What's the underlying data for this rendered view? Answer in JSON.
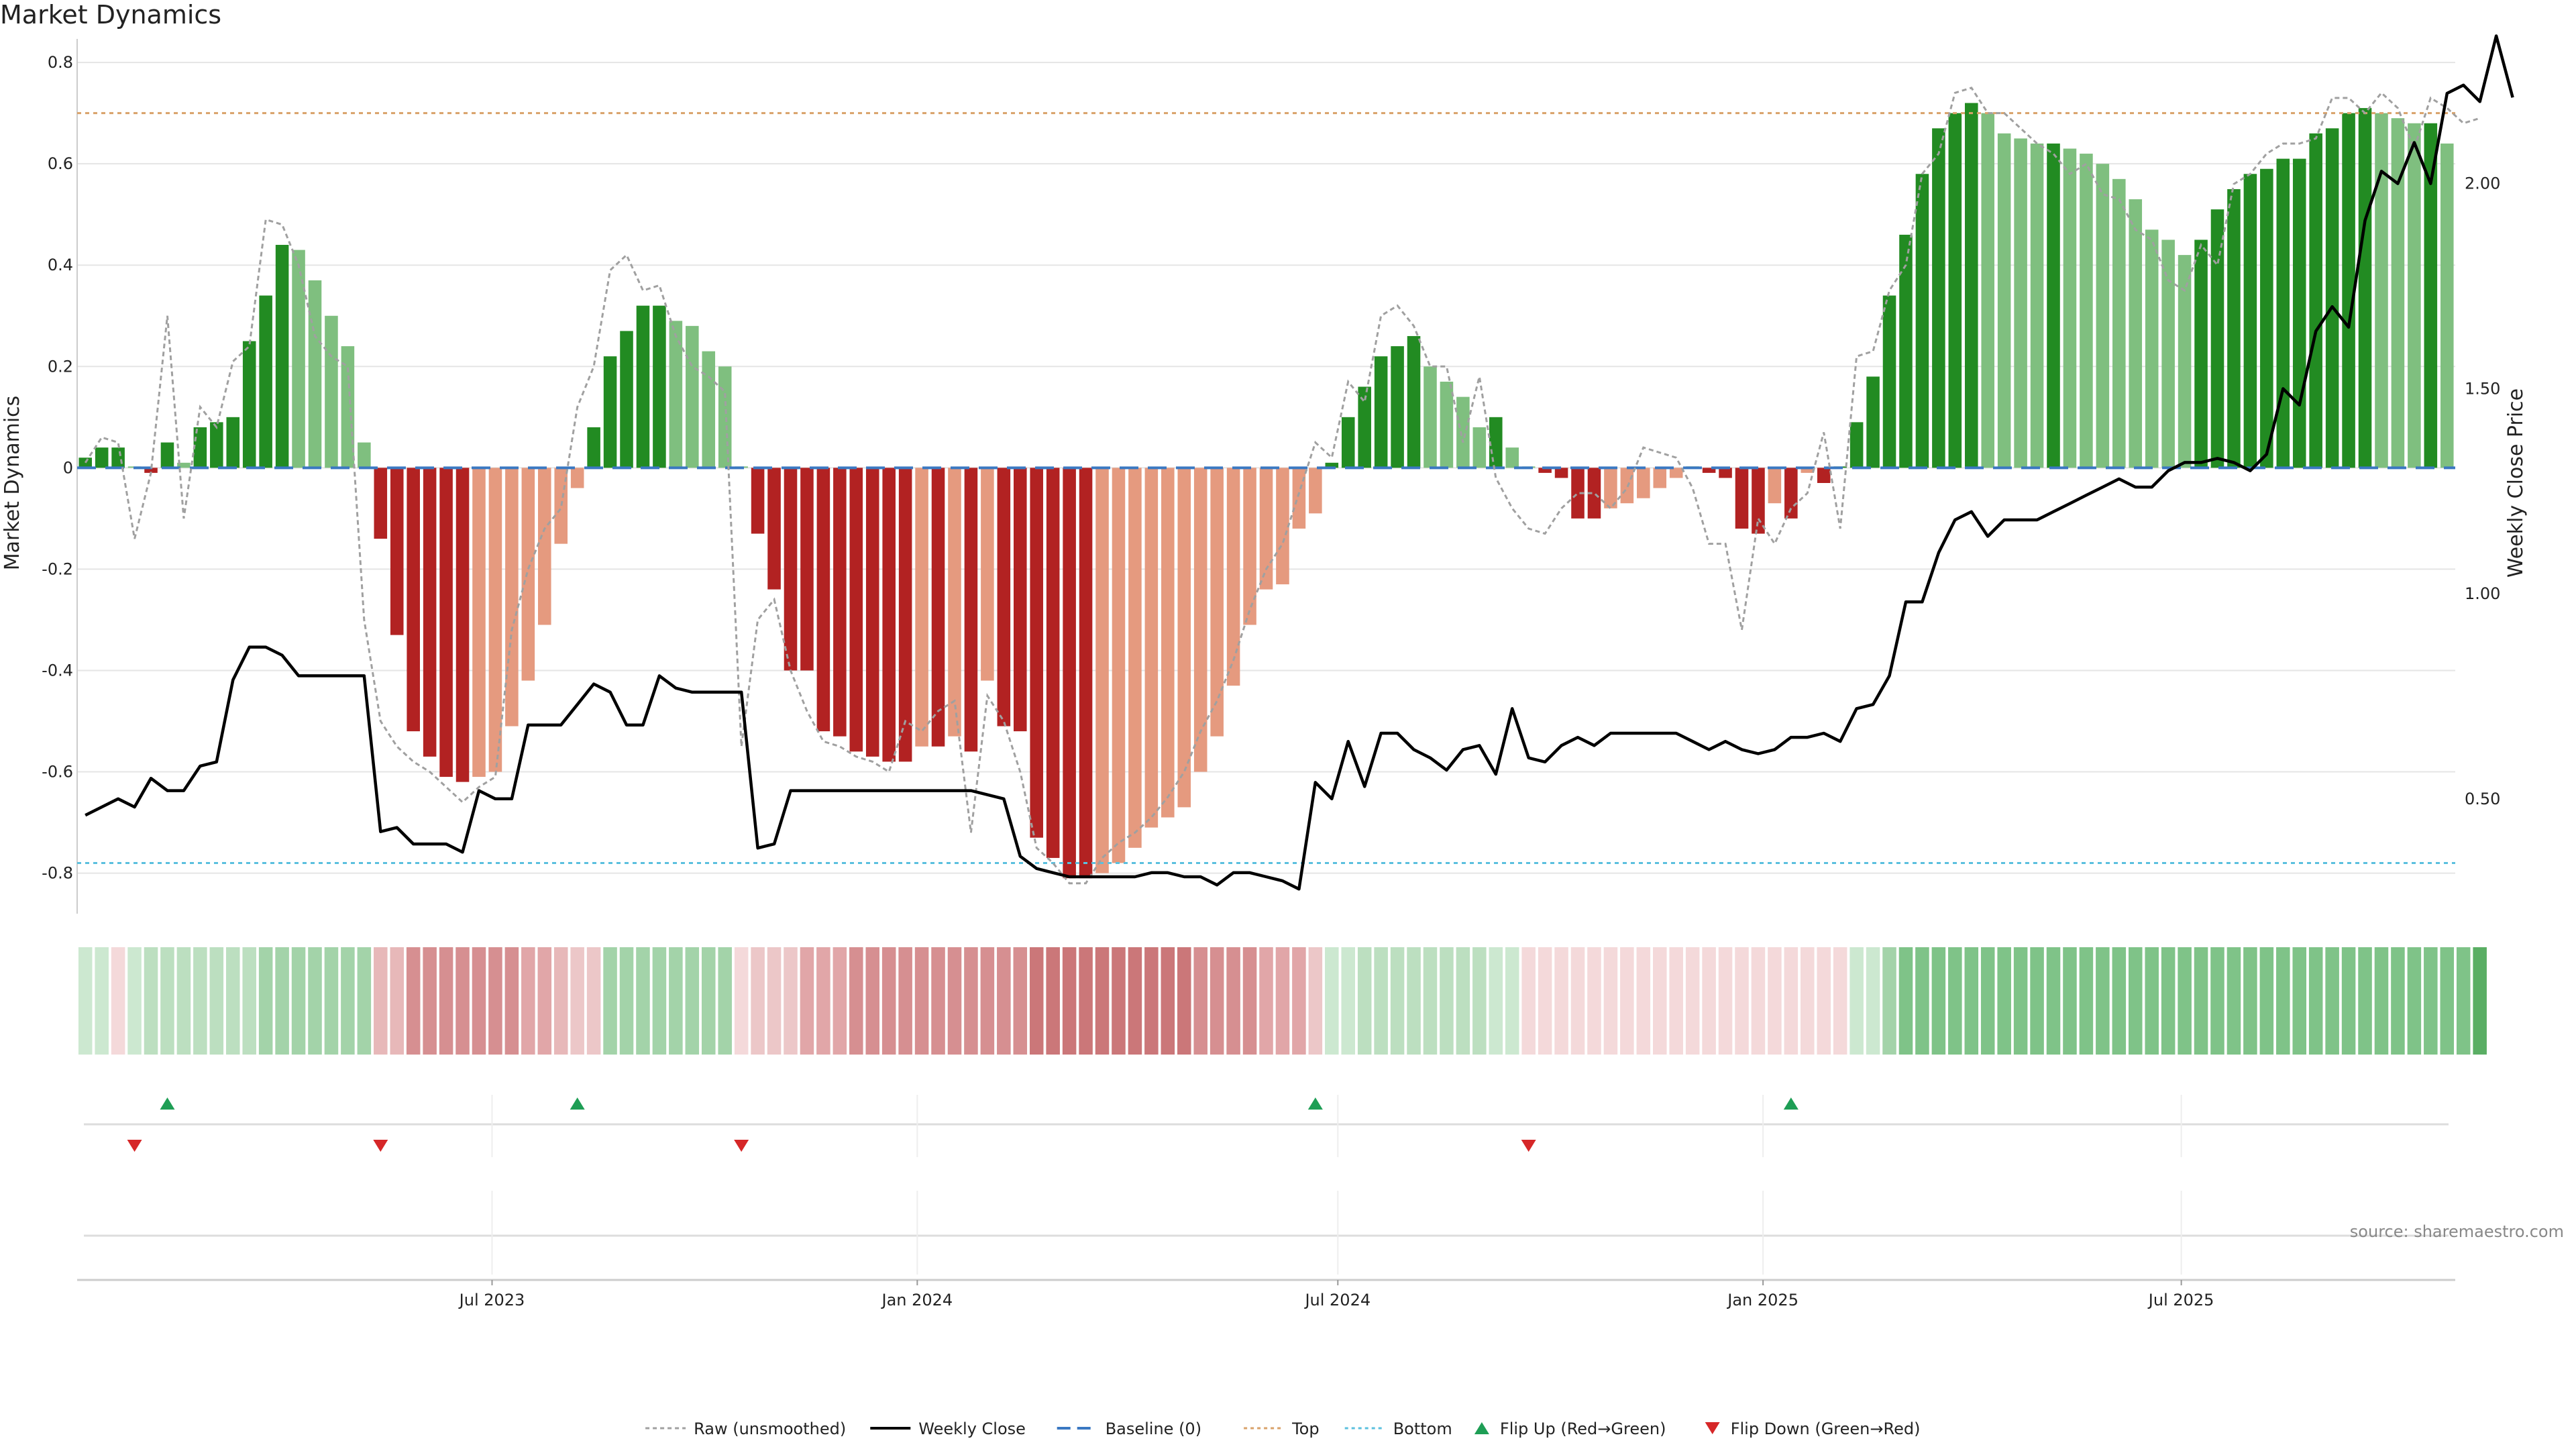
{
  "title": "Market Dynamics",
  "source_note": "source: sharemaestro.com",
  "chart_data": {
    "type": "bar",
    "title": "Market Dynamics",
    "ylabel_left": "Market Dynamics",
    "ylabel_right": "Weekly Close Price",
    "ylim_left": [
      -0.88,
      0.82
    ],
    "ylim_right": [
      0.22,
      2.32
    ],
    "yticks_left": [
      0.8,
      0.6,
      0.4,
      0.2,
      0,
      -0.2,
      -0.4,
      -0.6,
      -0.8
    ],
    "yticks_left_labels": [
      "0.8",
      "0.6",
      "0.4",
      "0.2",
      "0",
      "-0.2",
      "-0.4",
      "-0.6",
      "-0.8"
    ],
    "yticks_right": [
      2.0,
      1.5,
      1.0,
      0.5
    ],
    "yticks_right_labels": [
      "2.00",
      "1.50",
      "1.00",
      "0.50"
    ],
    "x_start": "2023-01-06",
    "x_end": "2025-10-24",
    "x_tick_labels": [
      "Jul 2023",
      "Jan 2024",
      "Jul 2024",
      "Jan 2025",
      "Jul 2025"
    ],
    "x_tick_dates": [
      "2023-07-01",
      "2024-01-01",
      "2024-07-01",
      "2025-01-01",
      "2025-07-01"
    ],
    "top_line": 0.7,
    "bottom_line": -0.78,
    "baseline": 0,
    "grid": true,
    "legend_position": "bottom-center",
    "market_dynamics": [
      0.02,
      0.04,
      0.04,
      0.0,
      -0.01,
      0.05,
      0.01,
      0.08,
      0.09,
      0.1,
      0.25,
      0.34,
      0.44,
      0.43,
      0.37,
      0.3,
      0.24,
      0.05,
      -0.14,
      -0.33,
      -0.52,
      -0.57,
      -0.61,
      -0.62,
      -0.61,
      -0.6,
      -0.51,
      -0.42,
      -0.31,
      -0.15,
      -0.04,
      0.08,
      0.22,
      0.27,
      0.32,
      0.32,
      0.29,
      0.28,
      0.23,
      0.2,
      0.0,
      -0.13,
      -0.24,
      -0.4,
      -0.4,
      -0.52,
      -0.53,
      -0.56,
      -0.57,
      -0.58,
      -0.58,
      -0.55,
      -0.55,
      -0.53,
      -0.56,
      -0.42,
      -0.51,
      -0.52,
      -0.73,
      -0.77,
      -0.81,
      -0.81,
      -0.8,
      -0.78,
      -0.75,
      -0.71,
      -0.69,
      -0.67,
      -0.6,
      -0.53,
      -0.43,
      -0.31,
      -0.24,
      -0.23,
      -0.12,
      -0.09,
      0.01,
      0.1,
      0.16,
      0.22,
      0.24,
      0.26,
      0.2,
      0.17,
      0.14,
      0.08,
      0.1,
      0.04,
      0.0,
      -0.01,
      -0.02,
      -0.1,
      -0.1,
      -0.08,
      -0.07,
      -0.06,
      -0.04,
      -0.02,
      0.0,
      -0.01,
      -0.02,
      -0.12,
      -0.13,
      -0.07,
      -0.1,
      -0.01,
      -0.03,
      0.0,
      0.09,
      0.18,
      0.34,
      0.46,
      0.58,
      0.67,
      0.7,
      0.72,
      0.7,
      0.66,
      0.65,
      0.64,
      0.64,
      0.63,
      0.62,
      0.6,
      0.57,
      0.53,
      0.47,
      0.45,
      0.42,
      0.45,
      0.51,
      0.55,
      0.58,
      0.59,
      0.61,
      0.61,
      0.66,
      0.67,
      0.7,
      0.71,
      0.7,
      0.69,
      0.68,
      0.68,
      0.64
    ],
    "raw_unsmoothed": [
      0.01,
      0.06,
      0.05,
      -0.14,
      -0.01,
      0.3,
      -0.1,
      0.12,
      0.08,
      0.21,
      0.24,
      0.49,
      0.48,
      0.4,
      0.26,
      0.22,
      0.2,
      -0.3,
      -0.5,
      -0.55,
      -0.58,
      -0.6,
      -0.63,
      -0.66,
      -0.63,
      -0.61,
      -0.32,
      -0.2,
      -0.12,
      -0.08,
      0.12,
      0.2,
      0.39,
      0.42,
      0.35,
      0.36,
      0.26,
      0.2,
      0.18,
      0.15,
      -0.55,
      -0.3,
      -0.26,
      -0.4,
      -0.48,
      -0.54,
      -0.55,
      -0.57,
      -0.58,
      -0.6,
      -0.5,
      -0.52,
      -0.48,
      -0.46,
      -0.72,
      -0.45,
      -0.5,
      -0.6,
      -0.75,
      -0.78,
      -0.82,
      -0.82,
      -0.77,
      -0.74,
      -0.72,
      -0.69,
      -0.65,
      -0.6,
      -0.52,
      -0.46,
      -0.38,
      -0.28,
      -0.2,
      -0.15,
      -0.05,
      0.05,
      0.02,
      0.17,
      0.13,
      0.3,
      0.32,
      0.28,
      0.2,
      0.2,
      0.05,
      0.18,
      -0.02,
      -0.08,
      -0.12,
      -0.13,
      -0.08,
      -0.05,
      -0.05,
      -0.08,
      -0.04,
      0.04,
      0.03,
      0.02,
      -0.04,
      -0.15,
      -0.15,
      -0.32,
      -0.1,
      -0.15,
      -0.08,
      -0.05,
      0.07,
      -0.12,
      0.22,
      0.23,
      0.35,
      0.4,
      0.58,
      0.62,
      0.74,
      0.75,
      0.7,
      0.7,
      0.67,
      0.64,
      0.62,
      0.58,
      0.6,
      0.54,
      0.53,
      0.47,
      0.45,
      0.37,
      0.35,
      0.44,
      0.4,
      0.56,
      0.58,
      0.62,
      0.64,
      0.64,
      0.65,
      0.73,
      0.73,
      0.7,
      0.74,
      0.71,
      0.63,
      0.73,
      0.71,
      0.68,
      0.69
    ],
    "weekly_close": [
      0.46,
      0.48,
      0.5,
      0.48,
      0.55,
      0.52,
      0.52,
      0.58,
      0.59,
      0.79,
      0.87,
      0.87,
      0.85,
      0.8,
      0.8,
      0.8,
      0.8,
      0.8,
      0.42,
      0.43,
      0.39,
      0.39,
      0.39,
      0.37,
      0.52,
      0.5,
      0.5,
      0.68,
      0.68,
      0.68,
      0.73,
      0.78,
      0.76,
      0.68,
      0.68,
      0.8,
      0.77,
      0.76,
      0.76,
      0.76,
      0.76,
      0.38,
      0.39,
      0.52,
      0.52,
      0.52,
      0.52,
      0.52,
      0.52,
      0.52,
      0.52,
      0.52,
      0.52,
      0.52,
      0.52,
      0.51,
      0.5,
      0.36,
      0.33,
      0.32,
      0.31,
      0.31,
      0.31,
      0.31,
      0.31,
      0.32,
      0.32,
      0.31,
      0.31,
      0.29,
      0.32,
      0.32,
      0.31,
      0.3,
      0.28,
      0.54,
      0.5,
      0.64,
      0.53,
      0.66,
      0.66,
      0.62,
      0.6,
      0.57,
      0.62,
      0.63,
      0.56,
      0.72,
      0.6,
      0.59,
      0.63,
      0.65,
      0.63,
      0.66,
      0.66,
      0.66,
      0.66,
      0.66,
      0.64,
      0.62,
      0.64,
      0.62,
      0.61,
      0.62,
      0.65,
      0.65,
      0.66,
      0.64,
      0.72,
      0.73,
      0.8,
      0.98,
      0.98,
      1.1,
      1.18,
      1.2,
      1.14,
      1.18,
      1.18,
      1.18,
      1.2,
      1.22,
      1.24,
      1.26,
      1.28,
      1.26,
      1.26,
      1.3,
      1.32,
      1.32,
      1.33,
      1.32,
      1.3,
      1.34,
      1.5,
      1.46,
      1.64,
      1.7,
      1.65,
      1.91,
      2.03,
      2.0,
      2.1,
      2.0,
      2.22,
      2.24,
      2.2,
      2.36,
      2.21
    ],
    "regime_colors": [
      "#cce8d0",
      "#cce8d0",
      "#f4d9da",
      "#cce8d0",
      "#bcdfc0",
      "#bcdfc0",
      "#bcdfc0",
      "#bcdfc0",
      "#bcdfc0",
      "#bcdfc0",
      "#bcdfc0",
      "#a3d3a9",
      "#a3d3a9",
      "#a3d3a9",
      "#a3d3a9",
      "#a3d3a9",
      "#a3d3a9",
      "#a3d3a9",
      "#e7b8b9",
      "#e7b8b9",
      "#d68f91",
      "#d68f91",
      "#d68f91",
      "#d68f91",
      "#d68f91",
      "#d68f91",
      "#d68f91",
      "#e1a6a8",
      "#e1a6a8",
      "#e7b8b9",
      "#ecc7c8",
      "#ecc7c8",
      "#a3d3a9",
      "#a3d3a9",
      "#a3d3a9",
      "#a3d3a9",
      "#a3d3a9",
      "#a3d3a9",
      "#a3d3a9",
      "#a3d3a9",
      "#f4d9da",
      "#ecc7c8",
      "#ecc7c8",
      "#ecc7c8",
      "#e1a6a8",
      "#e1a6a8",
      "#e1a6a8",
      "#d68f91",
      "#d68f91",
      "#d68f91",
      "#d68f91",
      "#d68f91",
      "#d68f91",
      "#d68f91",
      "#d68f91",
      "#d68f91",
      "#d68f91",
      "#d68f91",
      "#cb7779",
      "#cb7779",
      "#cb7779",
      "#cb7779",
      "#cb7779",
      "#cb7779",
      "#cb7779",
      "#cb7779",
      "#cb7779",
      "#cb7779",
      "#d68f91",
      "#d68f91",
      "#d68f91",
      "#d68f91",
      "#e1a6a8",
      "#e1a6a8",
      "#e1a6a8",
      "#ecc7c8",
      "#cce8d0",
      "#cce8d0",
      "#bcdfc0",
      "#bcdfc0",
      "#bcdfc0",
      "#bcdfc0",
      "#bcdfc0",
      "#bcdfc0",
      "#bcdfc0",
      "#bcdfc0",
      "#cce8d0",
      "#cce8d0",
      "#f4d9da",
      "#f4d9da",
      "#f4d9da",
      "#f4d9da",
      "#f4d9da",
      "#f4d9da",
      "#f4d9da",
      "#f4d9da",
      "#f4d9da",
      "#f4d9da",
      "#f4d9da",
      "#f4d9da",
      "#f4d9da",
      "#f4d9da",
      "#f4d9da",
      "#f4d9da",
      "#f4d9da",
      "#f4d9da",
      "#f4d9da",
      "#f4d9da",
      "#cce8d0",
      "#cce8d0",
      "#a3d3a9",
      "#7fc388",
      "#7fc388",
      "#7fc388",
      "#7fc388",
      "#7fc388",
      "#7fc388",
      "#7fc388",
      "#7fc388",
      "#7fc388",
      "#7fc388",
      "#7fc388",
      "#7fc388",
      "#7fc388",
      "#7fc388",
      "#7fc388",
      "#7fc388",
      "#7fc388",
      "#7fc388",
      "#7fc388",
      "#7fc388",
      "#7fc388",
      "#7fc388",
      "#7fc388",
      "#7fc388",
      "#7fc388",
      "#7fc388",
      "#7fc388",
      "#7fc388",
      "#7fc388",
      "#7fc388",
      "#7fc388",
      "#7fc388",
      "#7fc388",
      "#7fc388",
      "#7fc388",
      "#5aae64"
    ],
    "flip_up_weeks": [
      5,
      30,
      75,
      104
    ],
    "flip_down_weeks": [
      3,
      18,
      40,
      88
    ],
    "colors": {
      "strong_up": "#228b22",
      "weak_up": "#7fbf7f",
      "strong_down": "#b22222",
      "weak_down": "#e59a7f",
      "raw": "#a0a0a0",
      "close": "#000000",
      "baseline": "#3a78c2",
      "top": "#d9a26a",
      "bottom": "#5bc0de",
      "flip_up": "#1e9e55",
      "flip_down": "#d62728",
      "grid": "#e5e5e5"
    },
    "legend": [
      {
        "label": "Raw (unsmoothed)",
        "kind": "raw"
      },
      {
        "label": "Weekly Close",
        "kind": "close"
      },
      {
        "label": "Baseline (0)",
        "kind": "baseline"
      },
      {
        "label": "Top",
        "kind": "top"
      },
      {
        "label": "Bottom",
        "kind": "bottom"
      },
      {
        "label": "Flip Up (Red→Green)",
        "kind": "flip_up"
      },
      {
        "label": "Flip Down (Green→Red)",
        "kind": "flip_down"
      }
    ]
  }
}
